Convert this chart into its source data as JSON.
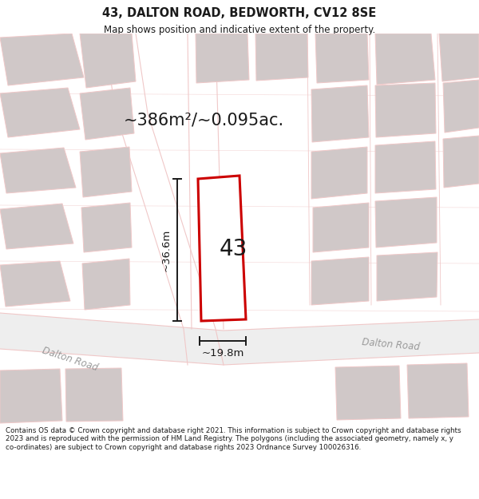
{
  "title_line1": "43, DALTON ROAD, BEDWORTH, CV12 8SE",
  "title_line2": "Map shows position and indicative extent of the property.",
  "area_label": "~386m²/~0.095ac.",
  "number_label": "43",
  "dim_width": "~19.8m",
  "dim_height": "~36.6m",
  "road_label_left": "Dalton Road",
  "road_label_right": "Dalton Road",
  "footer_text": "Contains OS data © Crown copyright and database right 2021. This information is subject to Crown copyright and database rights 2023 and is reproduced with the permission of HM Land Registry. The polygons (including the associated geometry, namely x, y co-ordinates) are subject to Crown copyright and database rights 2023 Ordnance Survey 100026316.",
  "bg_color": "#f5f0f0",
  "map_bg": "#faf5f5",
  "road_color": "#f0c8c8",
  "building_color": "#d0c8c8",
  "highlight_color": "#cc0000",
  "highlight_fill": "#ffffff",
  "text_color": "#1a1a1a",
  "dim_color": "#1a1a1a",
  "footer_bg": "#ffffff",
  "title_bg": "#ffffff"
}
